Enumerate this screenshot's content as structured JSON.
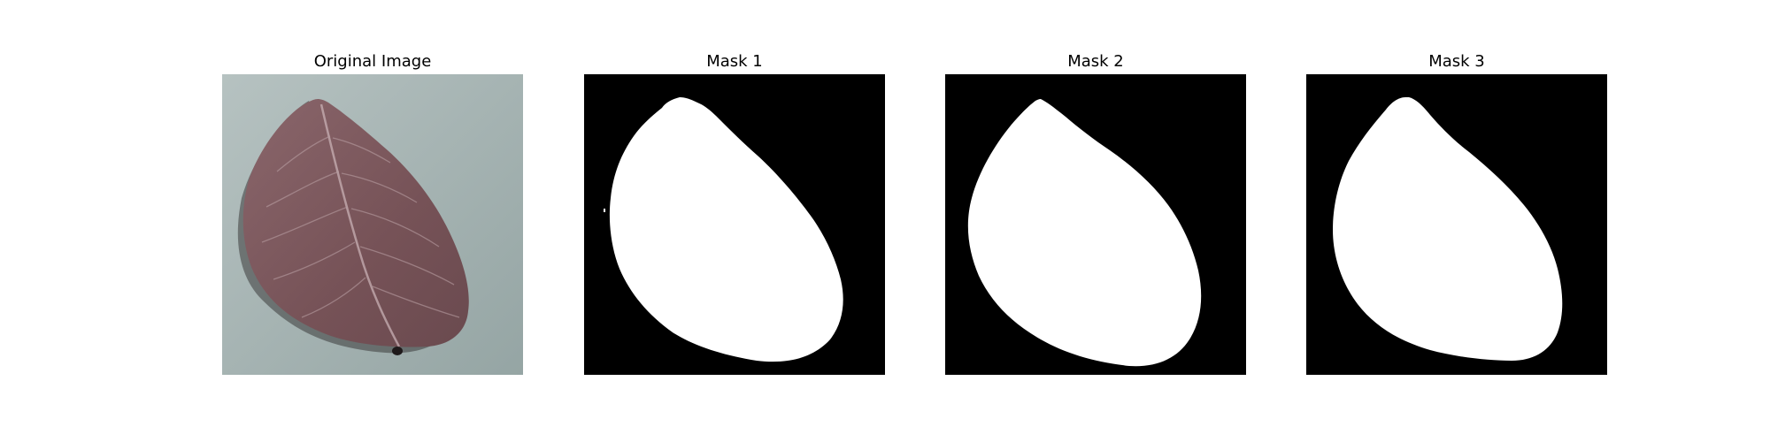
{
  "panels": [
    {
      "title": "Original Image",
      "kind": "photo"
    },
    {
      "title": "Mask 1",
      "kind": "mask"
    },
    {
      "title": "Mask 2",
      "kind": "mask"
    },
    {
      "title": "Mask 3",
      "kind": "mask"
    }
  ],
  "colors": {
    "background": "#ffffff",
    "photo_background": "#a6b4b3",
    "leaf": "#7d5a5f",
    "vein": "#c8b0b4",
    "mask_background": "#000000",
    "mask_foreground": "#ffffff"
  }
}
